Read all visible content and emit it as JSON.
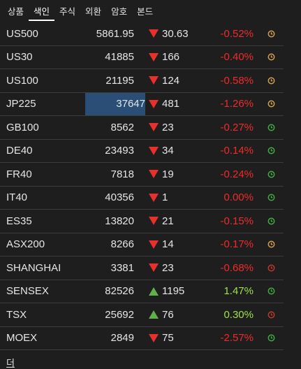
{
  "tabs": [
    "상품",
    "색인",
    "주식",
    "외환",
    "암호",
    "본드"
  ],
  "active_tab": 1,
  "colors": {
    "negative": "#ef2b2b",
    "positive": "#9ee34a",
    "down_arrow": "#e8312b",
    "up_arrow": "#5fb14a",
    "highlight": "#2a4e76"
  },
  "rows": [
    {
      "symbol": "US500",
      "price": "5861.95",
      "dir": "down",
      "change": "30.63",
      "pct": "-0.52%",
      "pct_sign": "neg",
      "clock": "orange-clock-icon",
      "clock_color": "#d4a14a"
    },
    {
      "symbol": "US30",
      "price": "41885",
      "dir": "down",
      "change": "166",
      "pct": "-0.40%",
      "pct_sign": "neg",
      "clock": "orange-clock-icon",
      "clock_color": "#d4a14a"
    },
    {
      "symbol": "US100",
      "price": "21195",
      "dir": "down",
      "change": "124",
      "pct": "-0.58%",
      "pct_sign": "neg",
      "clock": "orange-clock-icon",
      "clock_color": "#d4a14a"
    },
    {
      "symbol": "JP225",
      "price": "37647",
      "dir": "down",
      "change": "481",
      "pct": "-1.26%",
      "pct_sign": "neg",
      "clock": "orange-clock-icon",
      "clock_color": "#d4a14a",
      "highlight": true
    },
    {
      "symbol": "GB100",
      "price": "8562",
      "dir": "down",
      "change": "23",
      "pct": "-0.27%",
      "pct_sign": "neg",
      "clock": "green-clock-icon",
      "clock_color": "#3fae3f"
    },
    {
      "symbol": "DE40",
      "price": "23493",
      "dir": "down",
      "change": "34",
      "pct": "-0.14%",
      "pct_sign": "neg",
      "clock": "green-clock-icon",
      "clock_color": "#3fae3f"
    },
    {
      "symbol": "FR40",
      "price": "7818",
      "dir": "down",
      "change": "19",
      "pct": "-0.24%",
      "pct_sign": "neg",
      "clock": "green-clock-icon",
      "clock_color": "#3fae3f"
    },
    {
      "symbol": "IT40",
      "price": "40356",
      "dir": "down",
      "change": "1",
      "pct": "0.00%",
      "pct_sign": "neg",
      "clock": "green-clock-icon",
      "clock_color": "#3fae3f"
    },
    {
      "symbol": "ES35",
      "price": "13820",
      "dir": "down",
      "change": "21",
      "pct": "-0.15%",
      "pct_sign": "neg",
      "clock": "green-clock-icon",
      "clock_color": "#3fae3f"
    },
    {
      "symbol": "ASX200",
      "price": "8266",
      "dir": "down",
      "change": "14",
      "pct": "-0.17%",
      "pct_sign": "neg",
      "clock": "orange-clock-icon",
      "clock_color": "#d4a14a"
    },
    {
      "symbol": "SHANGHAI",
      "price": "3381",
      "dir": "down",
      "change": "23",
      "pct": "-0.68%",
      "pct_sign": "neg",
      "clock": "red-clock-icon",
      "clock_color": "#c0392b"
    },
    {
      "symbol": "SENSEX",
      "price": "82526",
      "dir": "up",
      "change": "1195",
      "pct": "1.47%",
      "pct_sign": "pos",
      "clock": "green-clock-icon",
      "clock_color": "#3fae3f"
    },
    {
      "symbol": "TSX",
      "price": "25692",
      "dir": "up",
      "change": "76",
      "pct": "0.30%",
      "pct_sign": "pos",
      "clock": "red-clock-icon",
      "clock_color": "#c0392b"
    },
    {
      "symbol": "MOEX",
      "price": "2849",
      "dir": "down",
      "change": "75",
      "pct": "-2.57%",
      "pct_sign": "neg",
      "clock": "green-clock-icon",
      "clock_color": "#3fae3f"
    }
  ],
  "more_label": "더"
}
